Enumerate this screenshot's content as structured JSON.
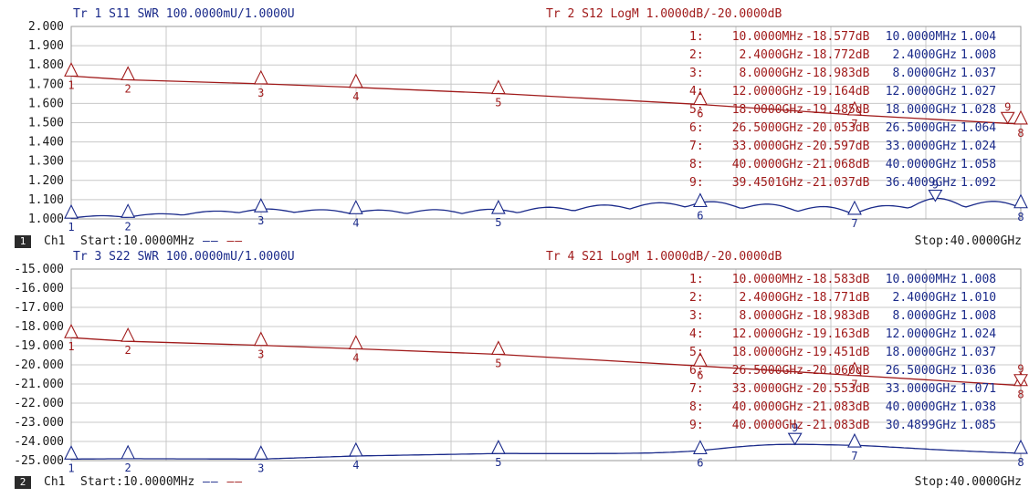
{
  "colors": {
    "trace_blue": "#1a2a8a",
    "trace_red": "#a01a1a",
    "grid": "#c8c8c8",
    "text": "#1a1a1a"
  },
  "footers": [
    {
      "badge": "1",
      "channel": "Ch1",
      "start": "Start:10.0000MHz",
      "legend": [
        "——",
        "——"
      ],
      "stop": "Stop:40.0000GHz"
    },
    {
      "badge": "2",
      "channel": "Ch1",
      "start": "Start:10.0000MHz",
      "legend": [
        "——",
        "——"
      ],
      "stop": "Stop:40.0000GHz"
    }
  ],
  "chart_data": [
    {
      "type": "line",
      "x_range_ghz": [
        0.01,
        40
      ],
      "y_ticks": [
        "2.000",
        "1.900",
        "1.800",
        "1.700",
        "1.600",
        "1.500",
        "1.400",
        "1.300",
        "1.200",
        "1.100",
        "1.000"
      ],
      "ylim": [
        1.0,
        2.0
      ],
      "headers": [
        {
          "text": "Tr 1  S11 SWR 100.0000mU/1.0000U",
          "color": "blue"
        },
        {
          "text": "Tr 2  S12 LogM 1.0000dB/-20.0000dB",
          "color": "red"
        }
      ],
      "marker_table": {
        "ids": [
          "1:",
          "2:",
          "3:",
          "4:",
          "5:",
          "6:",
          "7:",
          "8:",
          "9:"
        ],
        "red_freq": [
          "10.0000MHz",
          "2.4000GHz",
          "8.0000GHz",
          "12.0000GHz",
          "18.0000GHz",
          "26.5000GHz",
          "33.0000GHz",
          "40.0000GHz",
          "39.4501GHz"
        ],
        "red_val": [
          "-18.577dB",
          "-18.772dB",
          "-18.983dB",
          "-19.164dB",
          "-19.485dB",
          "-20.053dB",
          "-20.597dB",
          "-21.068dB",
          "-21.037dB"
        ],
        "blue_freq": [
          "10.0000MHz",
          "2.4000GHz",
          "8.0000GHz",
          "12.0000GHz",
          "18.0000GHz",
          "26.5000GHz",
          "33.0000GHz",
          "40.0000GHz",
          "36.4009GHz"
        ],
        "blue_val": [
          "1.004",
          "1.008",
          "1.037",
          "1.027",
          "1.028",
          "1.064",
          "1.024",
          "1.058",
          "1.092"
        ]
      },
      "series": [
        {
          "name": "S11 SWR",
          "color": "blue",
          "unit": "U",
          "type": "swr_ripple",
          "markers": [
            {
              "id": "1",
              "x": 0.01,
              "y": 1.004
            },
            {
              "id": "2",
              "x": 2.4,
              "y": 1.008
            },
            {
              "id": "3",
              "x": 8.0,
              "y": 1.037
            },
            {
              "id": "4",
              "x": 12.0,
              "y": 1.027
            },
            {
              "id": "5",
              "x": 18.0,
              "y": 1.028
            },
            {
              "id": "6",
              "x": 26.5,
              "y": 1.064
            },
            {
              "id": "7",
              "x": 33.0,
              "y": 1.024
            },
            {
              "id": "8",
              "x": 40.0,
              "y": 1.058
            },
            {
              "id": "9",
              "x": 36.4009,
              "y": 1.092
            }
          ]
        },
        {
          "name": "S12 LogM",
          "color": "red",
          "unit": "dB",
          "scale_top": 1.6,
          "scale_per_div": 0.1,
          "ref_value": -20.0,
          "ref_y": 1.6,
          "markers": [
            {
              "id": "1",
              "x": 0.01,
              "y": -18.577
            },
            {
              "id": "2",
              "x": 2.4,
              "y": -18.772
            },
            {
              "id": "3",
              "x": 8.0,
              "y": -18.983
            },
            {
              "id": "4",
              "x": 12.0,
              "y": -19.164
            },
            {
              "id": "5",
              "x": 18.0,
              "y": -19.485
            },
            {
              "id": "6",
              "x": 26.5,
              "y": -20.053
            },
            {
              "id": "7",
              "x": 33.0,
              "y": -20.597
            },
            {
              "id": "8",
              "x": 40.0,
              "y": -21.068
            },
            {
              "id": "9",
              "x": 39.4501,
              "y": -21.037
            }
          ]
        }
      ]
    },
    {
      "type": "line",
      "x_range_ghz": [
        0.01,
        40
      ],
      "y_ticks": [
        "-15.000",
        "-16.000",
        "-17.000",
        "-18.000",
        "-19.000",
        "-20.000",
        "-21.000",
        "-22.000",
        "-23.000",
        "-24.000",
        "-25.000"
      ],
      "ylim": [
        -25,
        -15
      ],
      "headers": [
        {
          "text": "Tr 3  S22 SWR 100.0000mU/1.0000U",
          "color": "blue"
        },
        {
          "text": "Tr 4  S21 LogM 1.0000dB/-20.0000dB",
          "color": "red"
        }
      ],
      "marker_table": {
        "ids": [
          "1:",
          "2:",
          "3:",
          "4:",
          "5:",
          "6:",
          "7:",
          "8:",
          "9:"
        ],
        "red_freq": [
          "10.0000MHz",
          "2.4000GHz",
          "8.0000GHz",
          "12.0000GHz",
          "18.0000GHz",
          "26.5000GHz",
          "33.0000GHz",
          "40.0000GHz",
          "40.0000GHz"
        ],
        "red_val": [
          "-18.583dB",
          "-18.771dB",
          "-18.983dB",
          "-19.163dB",
          "-19.451dB",
          "-20.060dB",
          "-20.553dB",
          "-21.083dB",
          "-21.083dB"
        ],
        "blue_freq": [
          "10.0000MHz",
          "2.4000GHz",
          "8.0000GHz",
          "12.0000GHz",
          "18.0000GHz",
          "26.5000GHz",
          "33.0000GHz",
          "40.0000GHz",
          "30.4899GHz"
        ],
        "blue_val": [
          "1.008",
          "1.010",
          "1.008",
          "1.024",
          "1.037",
          "1.036",
          "1.071",
          "1.038",
          "1.085"
        ]
      },
      "series": [
        {
          "name": "S22 SWR",
          "color": "blue",
          "unit": "U",
          "type": "swr_smooth",
          "markers": [
            {
              "id": "1",
              "x": 0.01,
              "y": 1.008
            },
            {
              "id": "2",
              "x": 2.4,
              "y": 1.01
            },
            {
              "id": "3",
              "x": 8.0,
              "y": 1.008
            },
            {
              "id": "4",
              "x": 12.0,
              "y": 1.024
            },
            {
              "id": "5",
              "x": 18.0,
              "y": 1.037
            },
            {
              "id": "6",
              "x": 26.5,
              "y": 1.036
            },
            {
              "id": "7",
              "x": 33.0,
              "y": 1.071
            },
            {
              "id": "8",
              "x": 40.0,
              "y": 1.038
            },
            {
              "id": "9",
              "x": 30.4899,
              "y": 1.085
            }
          ]
        },
        {
          "name": "S21 LogM",
          "color": "red",
          "unit": "dB",
          "markers": [
            {
              "id": "1",
              "x": 0.01,
              "y": -18.583
            },
            {
              "id": "2",
              "x": 2.4,
              "y": -18.771
            },
            {
              "id": "3",
              "x": 8.0,
              "y": -18.983
            },
            {
              "id": "4",
              "x": 12.0,
              "y": -19.163
            },
            {
              "id": "5",
              "x": 18.0,
              "y": -19.451
            },
            {
              "id": "6",
              "x": 26.5,
              "y": -20.06
            },
            {
              "id": "7",
              "x": 33.0,
              "y": -20.553
            },
            {
              "id": "8",
              "x": 40.0,
              "y": -21.083
            },
            {
              "id": "9",
              "x": 40.0,
              "y": -21.083
            }
          ]
        }
      ]
    }
  ]
}
